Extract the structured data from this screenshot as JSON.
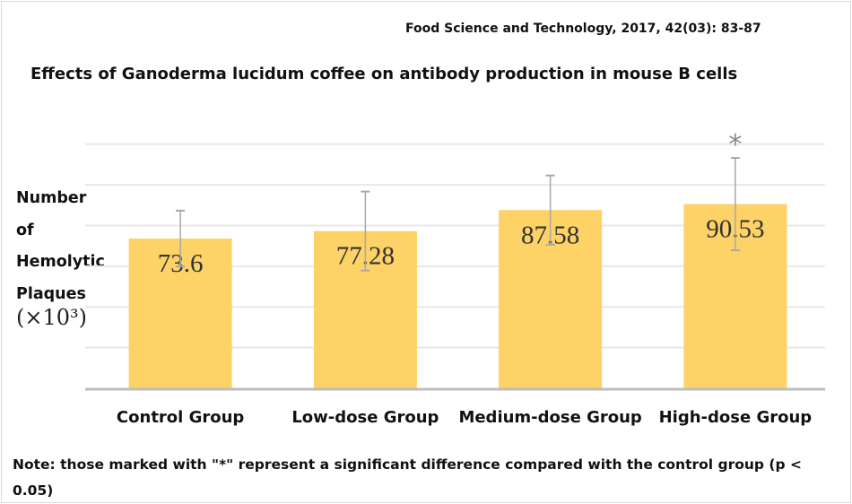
{
  "chart_data": {
    "type": "bar",
    "source": "Food Science and Technology, 2017, 42(03): 83-87",
    "title": "Effects of Ganoderma lucidum coffee on antibody production in mouse B cells",
    "ylabel_lines": [
      "Number",
      "of",
      "Hemolytic",
      "Plaques"
    ],
    "ylabel_unit": "(×10³)",
    "xlabel": "",
    "categories": [
      "Control Group",
      "Low-dose Group",
      "Medium-dose Group",
      "High-dose Group"
    ],
    "values": [
      73.6,
      77.28,
      87.58,
      90.53
    ],
    "data_labels": [
      "73.6",
      "77.28",
      "87.58",
      "90.53"
    ],
    "error": [
      13.7,
      19.4,
      17.0,
      22.7
    ],
    "significance": [
      "",
      "",
      "",
      "*"
    ],
    "ylim": [
      0,
      120
    ],
    "gridlines": [
      20,
      40,
      60,
      80,
      100,
      120
    ],
    "grid": true,
    "bar_color": "#FDD266",
    "error_color": "#a8a8a8",
    "note": "Note: those marked with \"*\" represent a significant difference compared with the control group (p < 0.05)"
  }
}
